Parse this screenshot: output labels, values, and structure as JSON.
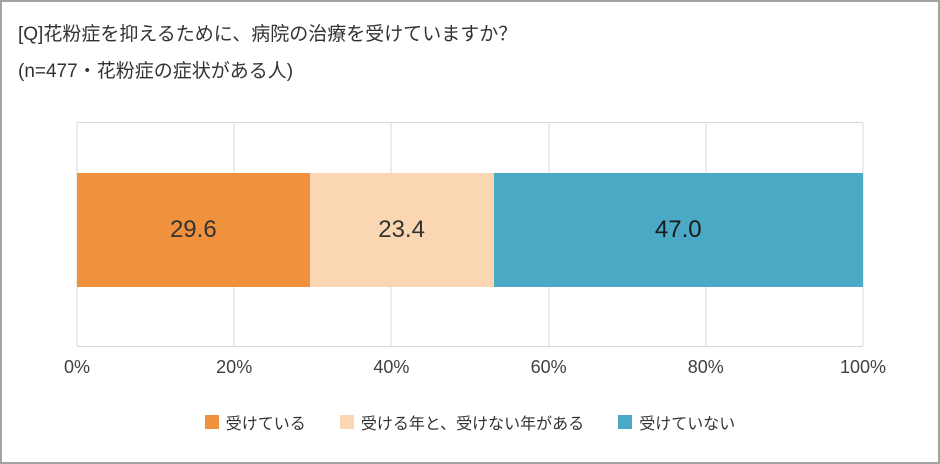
{
  "title": "[Q]花粉症を抑えるために、病院の治療を受けていますか？",
  "subtitle": "(n=477・花粉症の症状がある人)",
  "chart_data": {
    "type": "bar",
    "orientation": "horizontal-stacked",
    "title": "[Q]花粉症を抑えるために、病院の治療を受けていますか？",
    "subtitle": "(n=477・花粉症の症状がある人)",
    "n": 477,
    "series": [
      {
        "name": "受けている",
        "value": 29.6,
        "color": "#f0913e",
        "label_color": "#333333"
      },
      {
        "name": "受ける年と、受けない年がある",
        "value": 23.4,
        "color": "#fad7b2",
        "label_color": "#333333"
      },
      {
        "name": "受けていない",
        "value": 47.0,
        "color": "#4aa9c4",
        "label_color": "#1a1a1a"
      }
    ],
    "xlim": [
      0,
      100
    ],
    "x_ticks": [
      "0%",
      "20%",
      "40%",
      "60%",
      "80%",
      "100%"
    ],
    "grid": true,
    "gridline_color": "#d9d9d9",
    "legend_position": "bottom",
    "value_format": "one-decimal"
  }
}
